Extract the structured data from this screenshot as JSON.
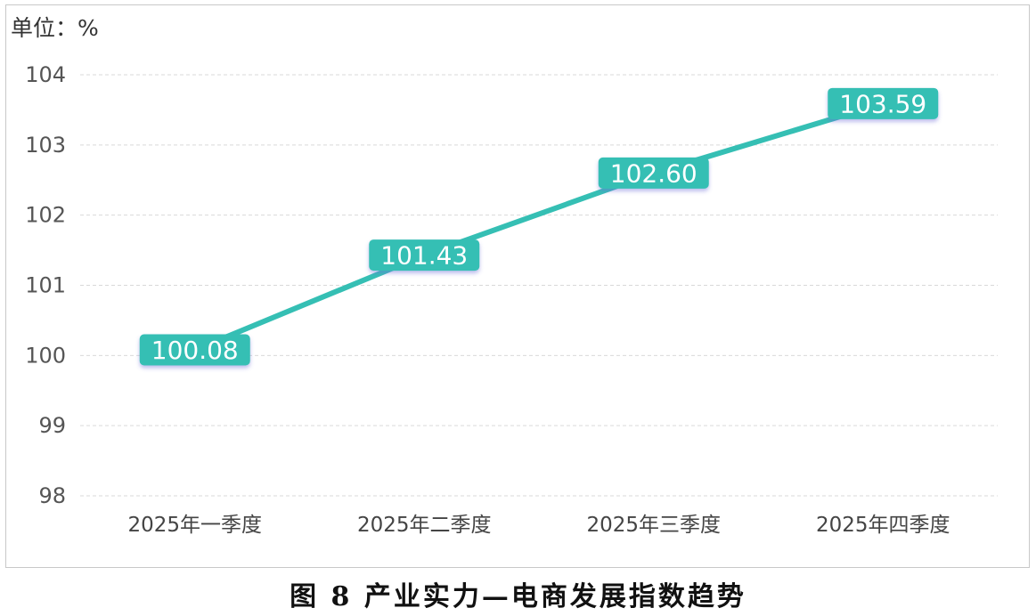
{
  "unit_label": "单位：%",
  "caption": "图 8 产业实力—电商发展指数趋势",
  "colors": {
    "line": "#35bfb4",
    "label_bg": "#35bfb4",
    "label_text": "#ffffff",
    "grid": "#d9d9d9",
    "axis_text": "#555555"
  },
  "chart_data": {
    "type": "line",
    "categories": [
      "2025年一季度",
      "2025年二季度",
      "2025年三季度",
      "2025年四季度"
    ],
    "series": [
      {
        "values": [
          100.08,
          101.43,
          102.6,
          103.59
        ],
        "labels": [
          "100.08",
          "101.43",
          "102.60",
          "103.59"
        ]
      }
    ],
    "ylim": [
      98,
      104
    ],
    "yticks": [
      98,
      99,
      100,
      101,
      102,
      103,
      104
    ],
    "ylabel": "单位：%",
    "grid": true,
    "legend": "none"
  }
}
